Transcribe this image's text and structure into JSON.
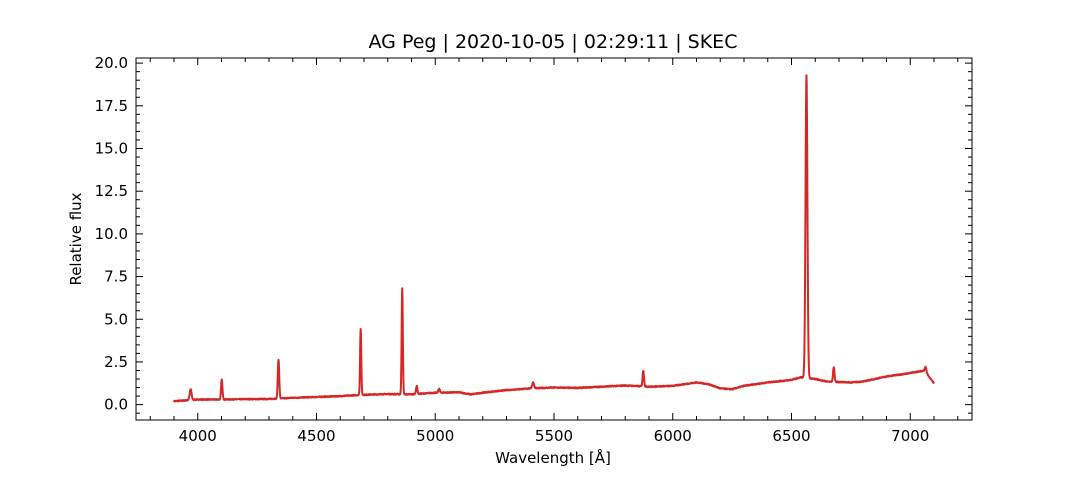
{
  "chart_data": {
    "type": "line",
    "title": "AG Peg | 2020-10-05 | 02:29:11 | SKEC",
    "xlabel": "Wavelength [Å]",
    "ylabel": "Relative flux",
    "xlim": [
      3740,
      7260
    ],
    "ylim": [
      -0.9,
      20.3
    ],
    "xticks": [
      4000,
      4500,
      5000,
      5500,
      6000,
      6500,
      7000
    ],
    "xtick_labels": [
      "4000",
      "4500",
      "5000",
      "5500",
      "6000",
      "6500",
      "7000"
    ],
    "yticks": [
      0.0,
      2.5,
      5.0,
      7.5,
      10.0,
      12.5,
      15.0,
      17.5,
      20.0
    ],
    "ytick_labels": [
      "0.0",
      "2.5",
      "5.0",
      "7.5",
      "10.0",
      "12.5",
      "15.0",
      "17.5",
      "20.0"
    ],
    "grid": false,
    "line_color": "#d62728",
    "series": [
      {
        "continuum": [
          [
            3900,
            0.2
          ],
          [
            3950,
            0.25
          ],
          [
            4000,
            0.3
          ],
          [
            4100,
            0.3
          ],
          [
            4200,
            0.32
          ],
          [
            4300,
            0.33
          ],
          [
            4400,
            0.4
          ],
          [
            4500,
            0.45
          ],
          [
            4600,
            0.5
          ],
          [
            4700,
            0.58
          ],
          [
            4800,
            0.62
          ],
          [
            4900,
            0.6
          ],
          [
            5000,
            0.7
          ],
          [
            5100,
            0.72
          ],
          [
            5150,
            0.6
          ],
          [
            5200,
            0.7
          ],
          [
            5300,
            0.85
          ],
          [
            5400,
            0.95
          ],
          [
            5500,
            1.0
          ],
          [
            5600,
            0.98
          ],
          [
            5700,
            1.05
          ],
          [
            5800,
            1.12
          ],
          [
            5900,
            1.05
          ],
          [
            6000,
            1.1
          ],
          [
            6100,
            1.3
          ],
          [
            6150,
            1.2
          ],
          [
            6200,
            0.95
          ],
          [
            6250,
            0.9
          ],
          [
            6300,
            1.1
          ],
          [
            6400,
            1.3
          ],
          [
            6500,
            1.45
          ],
          [
            6540,
            1.6
          ],
          [
            6600,
            1.5
          ],
          [
            6650,
            1.35
          ],
          [
            6750,
            1.3
          ],
          [
            6800,
            1.35
          ],
          [
            6850,
            1.5
          ],
          [
            6900,
            1.65
          ],
          [
            7000,
            1.85
          ],
          [
            7060,
            2.0
          ],
          [
            7100,
            1.25
          ]
        ],
        "lines": [
          {
            "center": 3970,
            "peak": 0.9,
            "width": 4
          },
          {
            "center": 4101,
            "peak": 1.45,
            "width": 3
          },
          {
            "center": 4340,
            "peak": 2.65,
            "width": 3
          },
          {
            "center": 4686,
            "peak": 4.45,
            "width": 2.5
          },
          {
            "center": 4861,
            "peak": 6.8,
            "width": 2.5
          },
          {
            "center": 4922,
            "peak": 1.1,
            "width": 3
          },
          {
            "center": 5016,
            "peak": 0.95,
            "width": 3
          },
          {
            "center": 5412,
            "peak": 1.3,
            "width": 4
          },
          {
            "center": 5876,
            "peak": 2.0,
            "width": 3
          },
          {
            "center": 6563,
            "peak": 19.3,
            "width": 4
          },
          {
            "center": 6678,
            "peak": 2.2,
            "width": 3
          },
          {
            "center": 7065,
            "peak": 2.2,
            "width": 3
          }
        ]
      }
    ]
  }
}
